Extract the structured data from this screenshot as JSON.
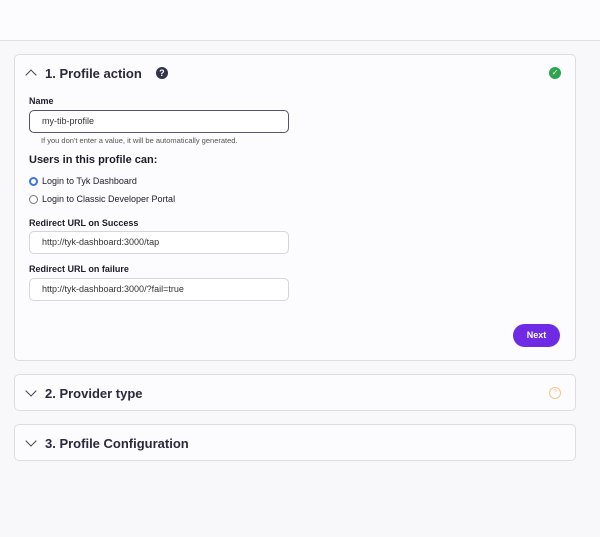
{
  "steps": [
    {
      "title": "1. Profile action",
      "status": "complete",
      "expanded": true
    },
    {
      "title": "2. Provider type",
      "status": "pending",
      "expanded": false
    },
    {
      "title": "3. Profile Configuration",
      "status": "none",
      "expanded": false
    }
  ],
  "form": {
    "name_label": "Name",
    "name_value": "my-tib-profile",
    "name_hint": "If you don't enter a value, it will be automatically generated.",
    "users_heading": "Users in this profile can:",
    "options": [
      {
        "label": "Login to Tyk Dashboard",
        "selected": true
      },
      {
        "label": "Login to Classic Developer Portal",
        "selected": false
      }
    ],
    "success_label": "Redirect URL on Success",
    "success_value": "http://tyk-dashboard:3000/tap",
    "failure_label": "Redirect URL on failure",
    "failure_value": "http://tyk-dashboard:3000/?fail=true",
    "next_label": "Next"
  },
  "colors": {
    "accent": "#6e2ae5",
    "success": "#2da44e",
    "pending": "#f0c890"
  }
}
